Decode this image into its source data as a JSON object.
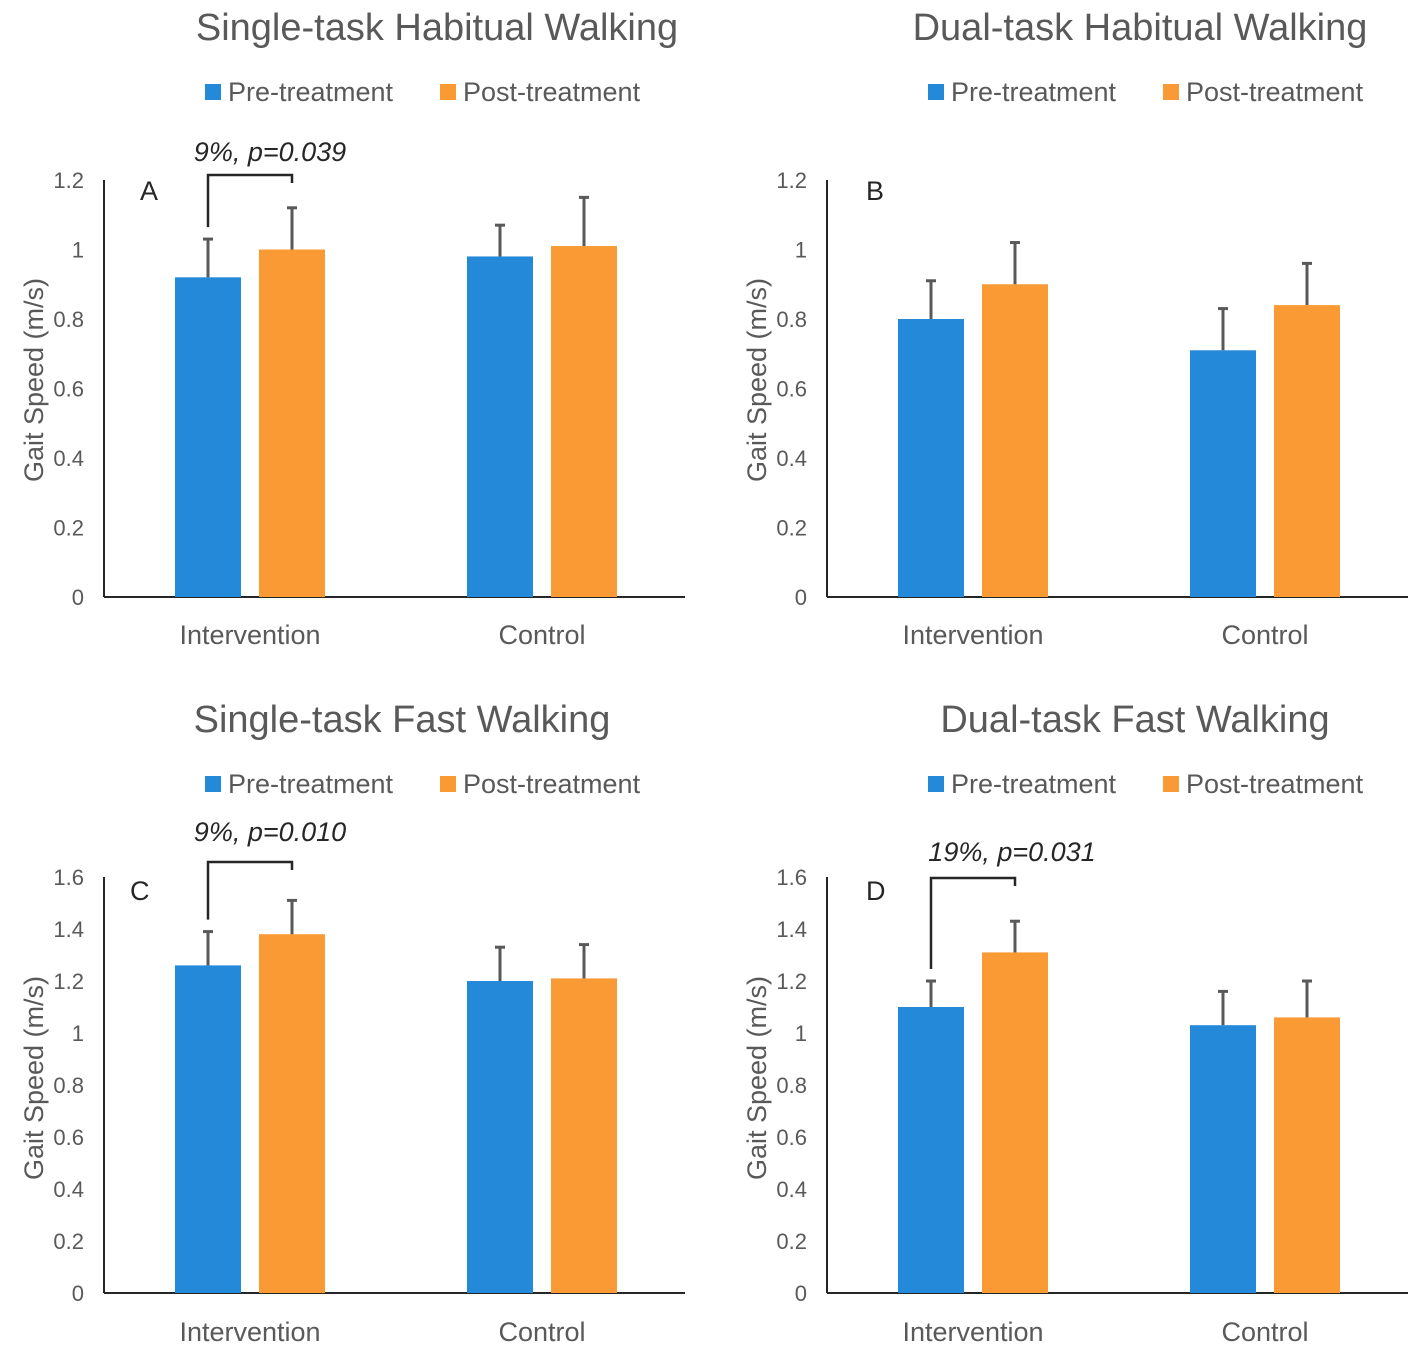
{
  "colors": {
    "pre": "#2389d8",
    "post": "#f99a35"
  },
  "chart_data": [
    {
      "type": "bar",
      "title": "Single-task Habitual Walking",
      "panel": "A",
      "ylabel": "Gait Speed (m/s)",
      "categories": [
        "Intervention",
        "Control"
      ],
      "ylim": [
        0,
        1.2
      ],
      "yticks": [
        "0",
        "0.2",
        "0.4",
        "0.6",
        "0.8",
        "1",
        "1.2"
      ],
      "series": [
        {
          "name": "Pre-treatment",
          "values": [
            0.92,
            0.98
          ],
          "error": [
            0.11,
            0.09
          ]
        },
        {
          "name": "Post-treatment",
          "values": [
            1.0,
            1.01
          ],
          "error": [
            0.12,
            0.14
          ]
        }
      ],
      "annotation": {
        "text": "9%, p=0.039",
        "category": 0
      },
      "legend": "top",
      "grid": false
    },
    {
      "type": "bar",
      "title": "Dual-task Habitual Walking",
      "panel": "B",
      "ylabel": "Gait Speed (m/s)",
      "categories": [
        "Intervention",
        "Control"
      ],
      "ylim": [
        0,
        1.2
      ],
      "yticks": [
        "0",
        "0.2",
        "0.4",
        "0.6",
        "0.8",
        "1",
        "1.2"
      ],
      "series": [
        {
          "name": "Pre-treatment",
          "values": [
            0.8,
            0.71
          ],
          "error": [
            0.11,
            0.12
          ]
        },
        {
          "name": "Post-treatment",
          "values": [
            0.9,
            0.84
          ],
          "error": [
            0.12,
            0.12
          ]
        }
      ],
      "annotation": null,
      "legend": "top",
      "grid": false
    },
    {
      "type": "bar",
      "title": "Single-task Fast Walking",
      "panel": "C",
      "ylabel": "Gait Speed (m/s)",
      "categories": [
        "Intervention",
        "Control"
      ],
      "ylim": [
        0,
        1.6
      ],
      "yticks": [
        "0",
        "0.2",
        "0.4",
        "0.6",
        "0.8",
        "1",
        "1.2",
        "1.4",
        "1.6"
      ],
      "series": [
        {
          "name": "Pre-treatment",
          "values": [
            1.26,
            1.2
          ],
          "error": [
            0.13,
            0.13
          ]
        },
        {
          "name": "Post-treatment",
          "values": [
            1.38,
            1.21
          ],
          "error": [
            0.13,
            0.13
          ]
        }
      ],
      "annotation": {
        "text": "9%, p=0.010",
        "category": 0
      },
      "legend": "top",
      "grid": false
    },
    {
      "type": "bar",
      "title": "Dual-task Fast Walking",
      "panel": "D",
      "ylabel": "Gait Speed (m/s)",
      "categories": [
        "Intervention",
        "Control"
      ],
      "ylim": [
        0,
        1.6
      ],
      "yticks": [
        "0",
        "0.2",
        "0.4",
        "0.6",
        "0.8",
        "1",
        "1.2",
        "1.4",
        "1.6"
      ],
      "series": [
        {
          "name": "Pre-treatment",
          "values": [
            1.1,
            1.03
          ],
          "error": [
            0.1,
            0.13
          ]
        },
        {
          "name": "Post-treatment",
          "values": [
            1.31,
            1.06
          ],
          "error": [
            0.12,
            0.14
          ]
        }
      ],
      "annotation": {
        "text": "19%, p=0.031",
        "category": 0
      },
      "legend": "top",
      "grid": false
    }
  ]
}
